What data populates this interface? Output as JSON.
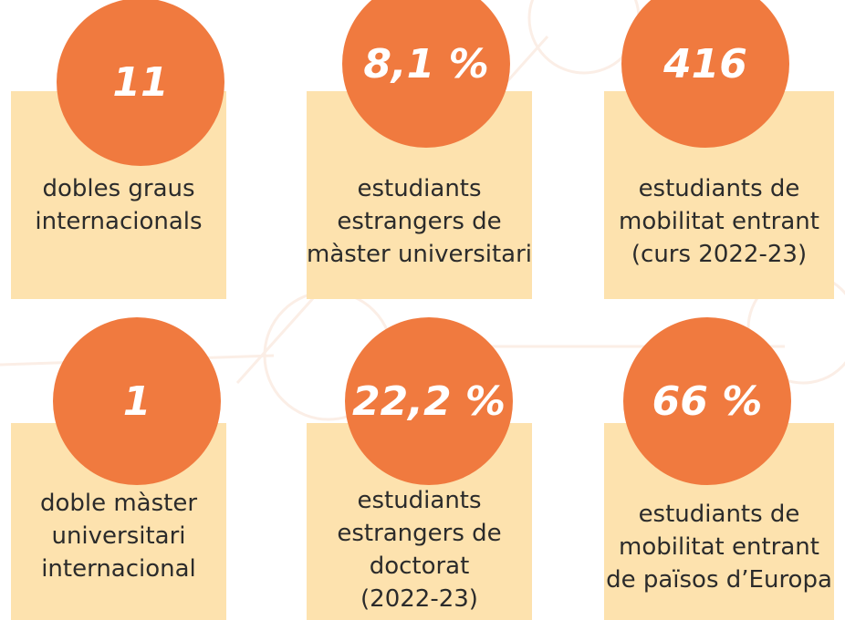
{
  "cards": [
    {
      "value": "11",
      "lines": [
        "dobles graus",
        "internacionals"
      ]
    },
    {
      "value": "8,1 %",
      "lines": [
        "estudiants",
        "estrangers de",
        "màster universitari"
      ]
    },
    {
      "value": "416",
      "lines": [
        "estudiants de",
        "mobilitat entrant",
        "(curs 2022-23)"
      ]
    },
    {
      "value": "1",
      "lines": [
        "doble màster",
        "universitari",
        "internacional"
      ]
    },
    {
      "value": "22,2 %",
      "lines": [
        "estudiants",
        "estrangers de",
        "doctorat",
        "(2022-23)"
      ]
    },
    {
      "value": "66 %",
      "lines": [
        "estudiants de",
        "mobilitat entrant",
        "de països d’Europa"
      ]
    }
  ]
}
